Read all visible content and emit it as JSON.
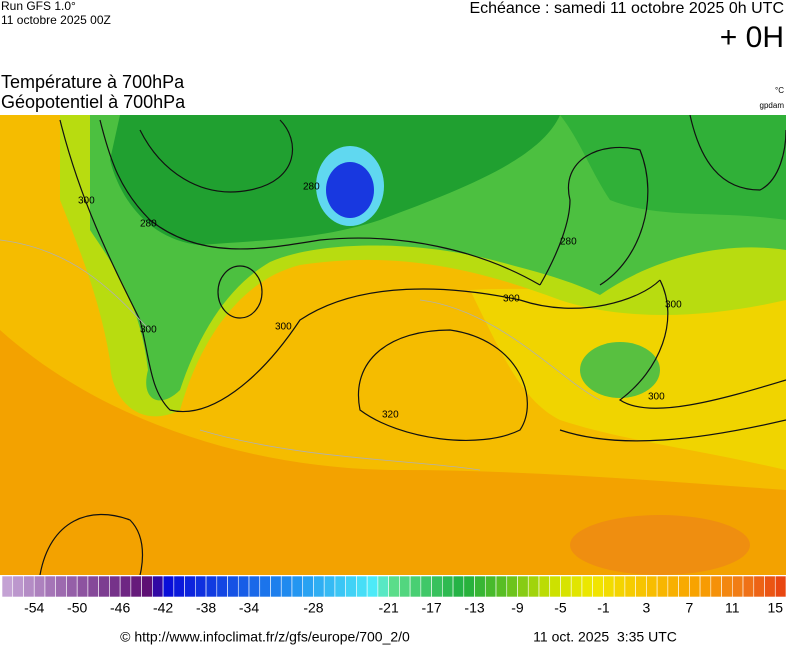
{
  "header": {
    "run": "Run GFS 1.0°",
    "run_date": "11 octobre 2025 00Z",
    "forecast": "Echéance : samedi 11 octobre 2025 0h UTC",
    "lead": "+ 0H",
    "title_temperature": "Température à 700hPa",
    "title_geopotential": "Géopotentiel à 700hPa",
    "unit_temperature": "°C",
    "unit_geopotential": "gpdam"
  },
  "map": {
    "contour_labels": [
      300,
      280,
      280,
      300,
      300,
      300,
      320,
      300,
      300,
      280
    ]
  },
  "colorbar": {
    "lim": [
      -57,
      16
    ],
    "ticks": [
      -54,
      -50,
      -46,
      -42,
      -38,
      -34,
      -28,
      -21,
      -17,
      -13,
      -9,
      -5,
      -1,
      3,
      7,
      11,
      15
    ],
    "stops": [
      [
        -57,
        "#c8a8d8"
      ],
      [
        -43,
        "#5a0a70"
      ],
      [
        -42,
        "#0808d8"
      ],
      [
        -30,
        "#2090f0"
      ],
      [
        -22,
        "#50f0f8"
      ],
      [
        -21,
        "#60e090"
      ],
      [
        -14,
        "#20b040"
      ],
      [
        -10,
        "#60c020"
      ],
      [
        -6,
        "#c8e000"
      ],
      [
        -2,
        "#f0e800"
      ],
      [
        3,
        "#f8c000"
      ],
      [
        8,
        "#f8a000"
      ],
      [
        12,
        "#f07818"
      ],
      [
        16,
        "#e84010"
      ]
    ]
  },
  "footer": {
    "source": "© http://www.infoclimat.fr/z/gfs/europe/700_2/0",
    "generated": "11 oct. 2025  3:35 UTC"
  }
}
